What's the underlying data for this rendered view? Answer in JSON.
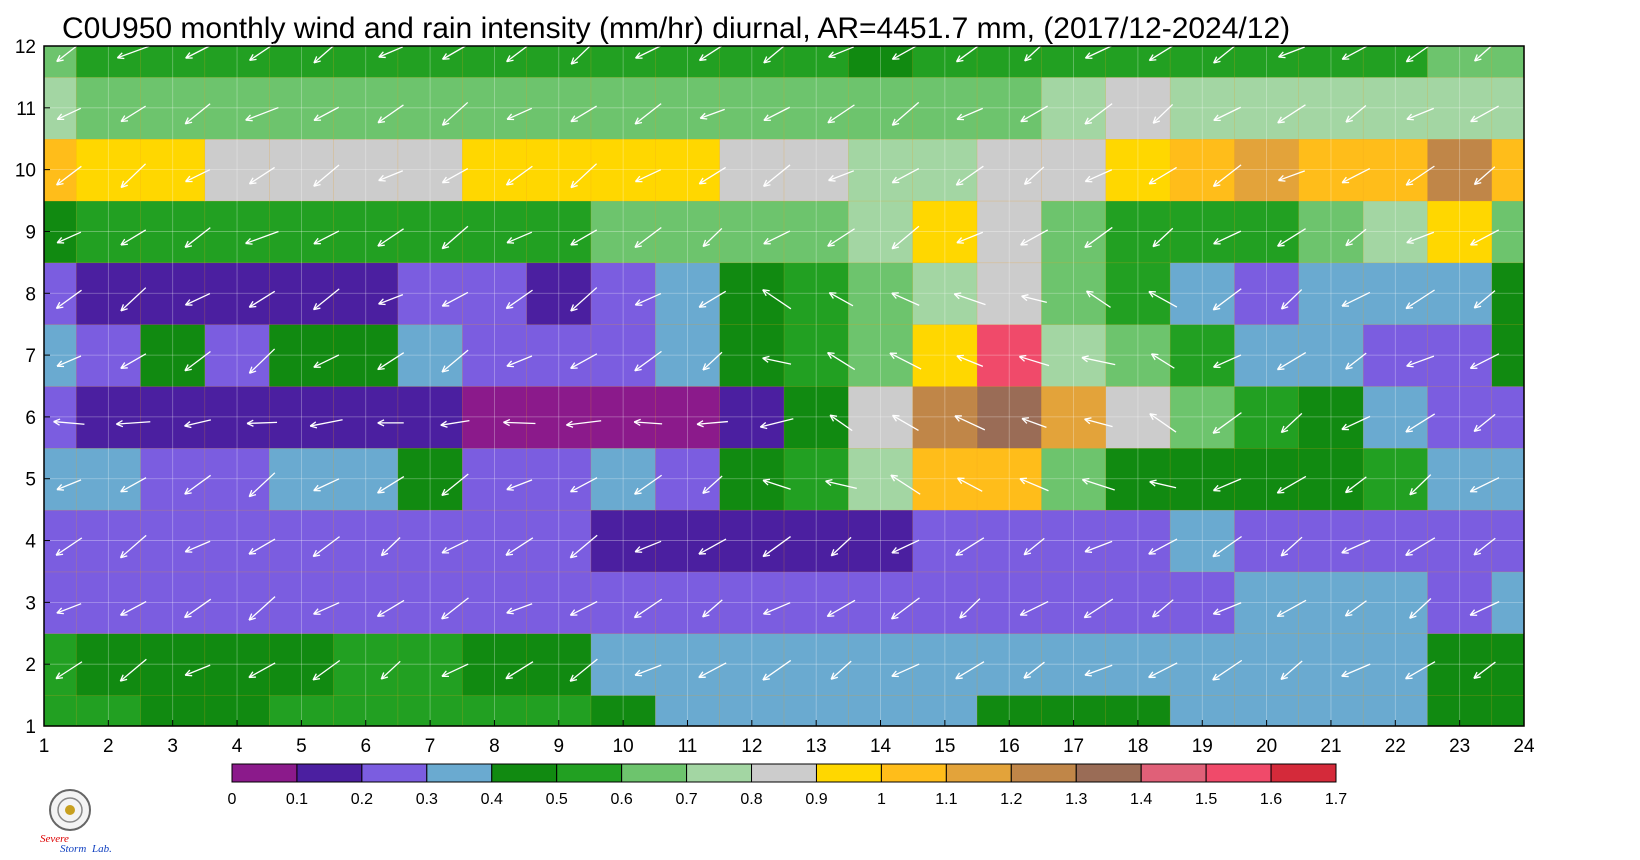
{
  "chart_data": {
    "type": "heatmap",
    "title": "C0U950 monthly wind and rain intensity (mm/hr) diurnal, AR=4451.7 mm, (2017/12-2024/12)",
    "xlabel": "",
    "ylabel": "",
    "x": [
      1,
      2,
      3,
      4,
      5,
      6,
      7,
      8,
      9,
      10,
      11,
      12,
      13,
      14,
      15,
      16,
      17,
      18,
      19,
      20,
      21,
      22,
      23,
      24
    ],
    "y": [
      1,
      2,
      3,
      4,
      5,
      6,
      7,
      8,
      9,
      10,
      11,
      12
    ],
    "xlim": [
      1,
      24
    ],
    "ylim": [
      1,
      12
    ],
    "x_ticks": [
      "1",
      "2",
      "3",
      "4",
      "5",
      "6",
      "7",
      "8",
      "9",
      "10",
      "11",
      "12",
      "13",
      "14",
      "15",
      "16",
      "17",
      "18",
      "19",
      "20",
      "21",
      "22",
      "23",
      "24"
    ],
    "y_ticks": [
      "1",
      "2",
      "3",
      "4",
      "5",
      "6",
      "7",
      "8",
      "9",
      "10",
      "11",
      "12"
    ],
    "grid": true,
    "values_by_month": [
      [
        0.5,
        0.5,
        0.45,
        0.45,
        0.5,
        0.55,
        0.55,
        0.5,
        0.55,
        0.45,
        0.35,
        0.35,
        0.35,
        0.35,
        0.35,
        0.4,
        0.45,
        0.4,
        0.35,
        0.35,
        0.35,
        0.35,
        0.4,
        0.45
      ],
      [
        0.5,
        0.45,
        0.45,
        0.45,
        0.45,
        0.5,
        0.5,
        0.45,
        0.45,
        0.35,
        0.35,
        0.35,
        0.35,
        0.35,
        0.35,
        0.35,
        0.35,
        0.35,
        0.35,
        0.35,
        0.35,
        0.35,
        0.4,
        0.45
      ],
      [
        0.3,
        0.3,
        0.3,
        0.25,
        0.25,
        0.3,
        0.3,
        0.3,
        0.25,
        0.25,
        0.25,
        0.25,
        0.25,
        0.25,
        0.25,
        0.25,
        0.3,
        0.3,
        0.3,
        0.35,
        0.35,
        0.35,
        0.3,
        0.35
      ],
      [
        0.25,
        0.3,
        0.25,
        0.2,
        0.25,
        0.25,
        0.25,
        0.25,
        0.25,
        0.15,
        0.15,
        0.15,
        0.15,
        0.15,
        0.25,
        0.25,
        0.25,
        0.25,
        0.35,
        0.25,
        0.3,
        0.25,
        0.25,
        0.3
      ],
      [
        0.35,
        0.35,
        0.3,
        0.25,
        0.35,
        0.35,
        0.45,
        0.25,
        0.25,
        0.35,
        0.25,
        0.45,
        0.55,
        0.75,
        1.05,
        1.05,
        0.65,
        0.45,
        0.45,
        0.45,
        0.45,
        0.5,
        0.35,
        0.35
      ],
      [
        0.25,
        0.15,
        0.15,
        0.15,
        0.15,
        0.15,
        0.15,
        0.05,
        0.05,
        0.05,
        0.05,
        0.15,
        0.45,
        0.85,
        1.25,
        1.35,
        1.15,
        0.85,
        0.65,
        0.55,
        0.45,
        0.35,
        0.25,
        0.25
      ],
      [
        0.35,
        0.3,
        0.45,
        0.25,
        0.45,
        0.45,
        0.35,
        0.25,
        0.25,
        0.3,
        0.35,
        0.45,
        0.55,
        0.65,
        0.95,
        1.55,
        0.75,
        0.65,
        0.55,
        0.35,
        0.35,
        0.25,
        0.25,
        0.45
      ],
      [
        0.25,
        0.15,
        0.15,
        0.15,
        0.15,
        0.15,
        0.25,
        0.25,
        0.15,
        0.25,
        0.35,
        0.45,
        0.55,
        0.65,
        0.75,
        0.8,
        0.65,
        0.5,
        0.35,
        0.25,
        0.35,
        0.35,
        0.35,
        0.45
      ],
      [
        0.45,
        0.5,
        0.55,
        0.55,
        0.55,
        0.55,
        0.55,
        0.55,
        0.6,
        0.65,
        0.65,
        0.65,
        0.7,
        0.75,
        0.9,
        0.85,
        0.7,
        0.6,
        0.55,
        0.55,
        0.65,
        0.75,
        0.95,
        0.65
      ],
      [
        1.05,
        0.95,
        0.95,
        0.85,
        0.85,
        0.85,
        0.85,
        0.95,
        0.95,
        0.95,
        0.95,
        0.85,
        0.85,
        0.75,
        0.75,
        0.8,
        0.85,
        0.95,
        1.05,
        1.15,
        1.05,
        1.05,
        1.25,
        1.05
      ],
      [
        0.75,
        0.65,
        0.65,
        0.65,
        0.65,
        0.65,
        0.65,
        0.65,
        0.65,
        0.65,
        0.65,
        0.65,
        0.65,
        0.65,
        0.65,
        0.7,
        0.75,
        0.8,
        0.75,
        0.75,
        0.75,
        0.75,
        0.75,
        0.75
      ],
      [
        0.65,
        0.6,
        0.55,
        0.6,
        0.6,
        0.6,
        0.6,
        0.6,
        0.55,
        0.55,
        0.55,
        0.55,
        0.5,
        0.45,
        0.55,
        0.55,
        0.6,
        0.6,
        0.6,
        0.6,
        0.6,
        0.6,
        0.65,
        0.65
      ]
    ],
    "wind_direction": "mostly from the east/northeast (arrows point west/southwest); northwest-pointing arrows over months 5-8 afternoons",
    "colorbar": {
      "ticks": [
        "0",
        "0.1",
        "0.2",
        "0.3",
        "0.4",
        "0.5",
        "0.6",
        "0.7",
        "0.8",
        "0.9",
        "1",
        "1.1",
        "1.2",
        "1.3",
        "1.4",
        "1.5",
        "1.6",
        "1.7"
      ],
      "colors": [
        "#8b1a8b",
        "#4b1fa0",
        "#7b5de0",
        "#6aaad0",
        "#118a11",
        "#22a022",
        "#6dc46d",
        "#a3d6a3",
        "#cccccc",
        "#ffd700",
        "#ffbd1a",
        "#e3a33a",
        "#c08648",
        "#9a6c56",
        "#e06078",
        "#f04a6a",
        "#d42a3a"
      ]
    },
    "contour_line_color": "#f0a020"
  },
  "logo": {
    "line1": "Severe",
    "line2": "Storm",
    "line3": "Lab."
  }
}
